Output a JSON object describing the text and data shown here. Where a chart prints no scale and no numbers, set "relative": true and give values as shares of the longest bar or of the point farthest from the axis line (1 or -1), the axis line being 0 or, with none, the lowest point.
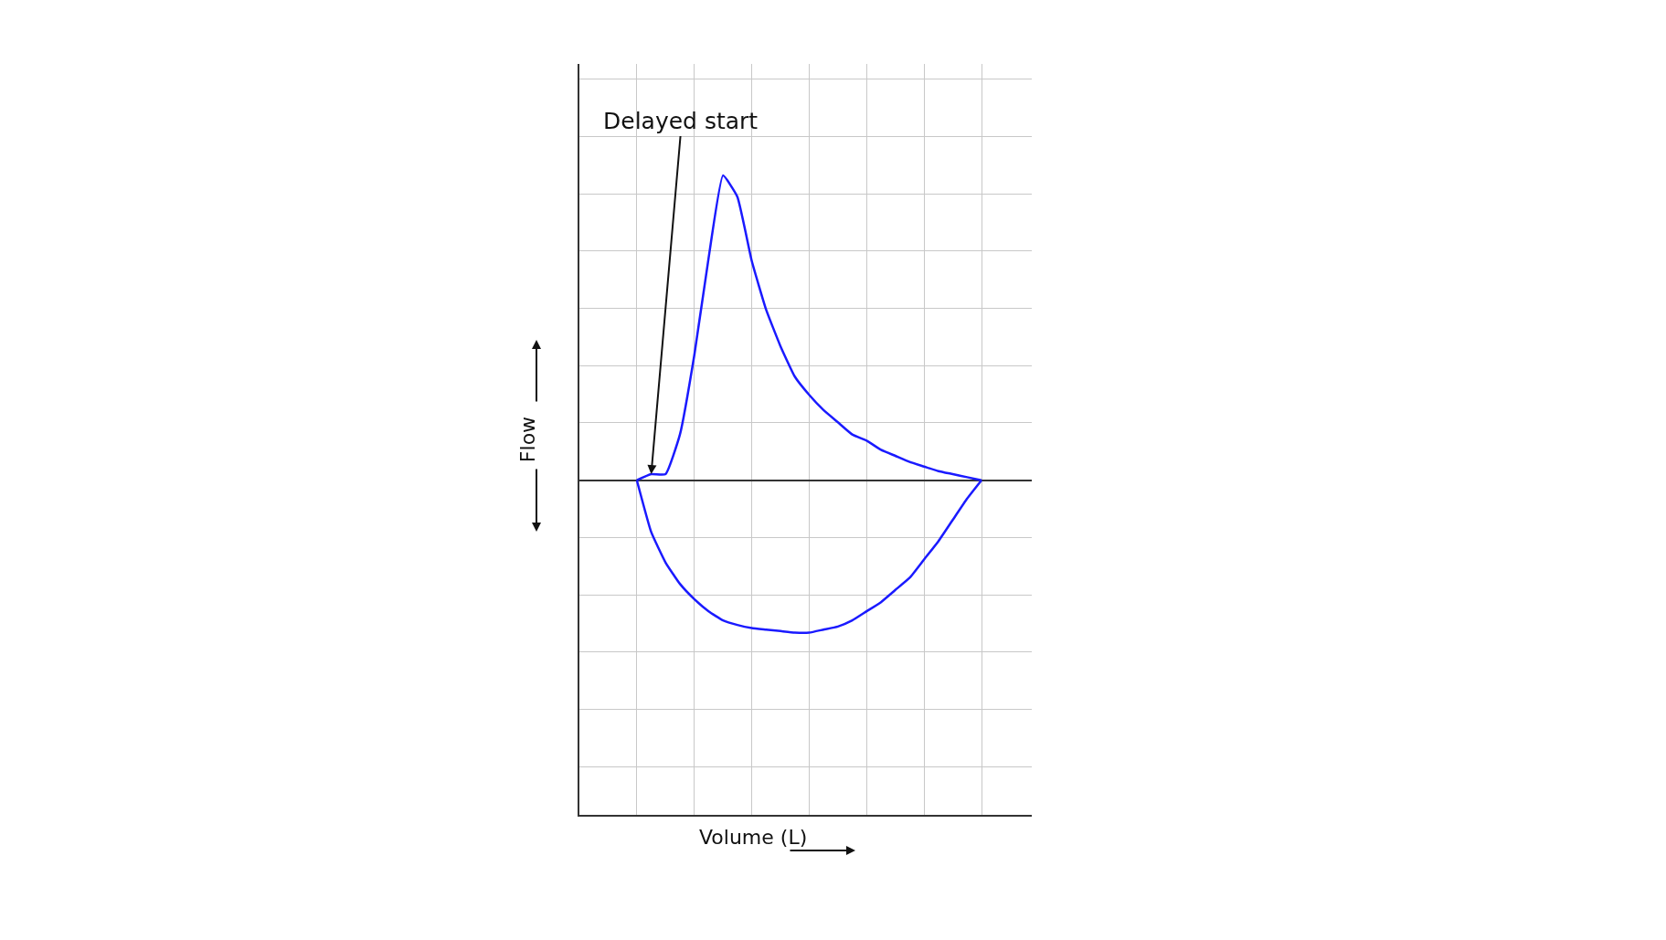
{
  "chart_data": {
    "type": "line",
    "relative": true,
    "ylabel": "Flow",
    "grid": true,
    "marker": "none",
    "line_style": "solid",
    "categories": [
      null,
      null,
      null,
      null,
      null,
      null,
      null,
      null,
      null,
      null,
      null,
      null,
      null,
      null,
      null,
      null,
      null,
      null,
      null,
      null,
      null,
      null,
      null,
      null,
      null,
      null,
      null,
      null,
      null,
      null,
      null,
      null
    ],
    "series": [
      {
        "color": "#1a1aff",
        "values": [
          null,
          null,
          null,
          null,
          0,
          0.02,
          0.02,
          0.15,
          0.41,
          0.73,
          1.0,
          0.93,
          0.72,
          0.56,
          0.44,
          0.34,
          0.28,
          0.23,
          0.19,
          0.15,
          0.13,
          0.1,
          0.08,
          0.06,
          0.045,
          0.03,
          0.02,
          0.01,
          0,
          null,
          null,
          null
        ]
      },
      {
        "color": "#1a1aff",
        "values": [
          null,
          null,
          null,
          null,
          0,
          -0.17,
          -0.27,
          -0.34,
          -0.39,
          -0.43,
          -0.46,
          -0.475,
          -0.485,
          -0.49,
          -0.495,
          -0.5,
          -0.5,
          -0.49,
          -0.48,
          -0.46,
          -0.43,
          -0.4,
          -0.36,
          -0.32,
          -0.26,
          -0.2,
          -0.13,
          -0.06,
          0,
          null,
          null,
          null
        ]
      }
    ],
    "annotations": [
      "Delayed start",
      "Volume (L)"
    ]
  }
}
